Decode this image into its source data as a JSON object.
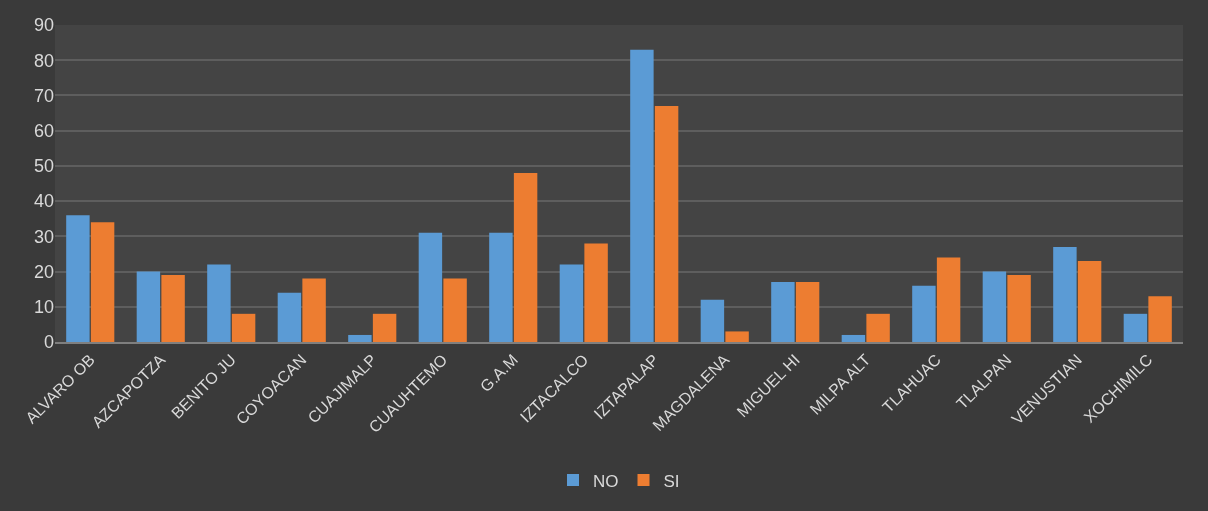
{
  "chart_data": {
    "type": "bar",
    "categories": [
      "ALVARO OB",
      "AZCAPOTZA",
      "BENITO JU",
      "COYOACAN",
      "CUAJIMALP",
      "CUAUHTEMO",
      "G.A.M",
      "IZTACALCO",
      "IZTAPALAP",
      "MAGDALENA",
      "MIGUEL HI",
      "MILPA ALT",
      "TLAHUAC",
      "TLALPAN",
      "VENUSTIAN",
      "XOCHIMILC"
    ],
    "series": [
      {
        "name": "NO",
        "color": "#5b9bd5",
        "values": [
          36,
          20,
          22,
          14,
          2,
          31,
          31,
          22,
          83,
          12,
          17,
          2,
          16,
          20,
          27,
          8
        ]
      },
      {
        "name": "SI",
        "color": "#ed7d31",
        "values": [
          34,
          19,
          8,
          18,
          8,
          18,
          48,
          28,
          67,
          3,
          17,
          8,
          24,
          19,
          23,
          13
        ]
      }
    ],
    "ylim": [
      0,
      90
    ],
    "yticks": [
      0,
      10,
      20,
      30,
      40,
      50,
      60,
      70,
      80,
      90
    ],
    "grid": "y",
    "legend": "bottom"
  }
}
